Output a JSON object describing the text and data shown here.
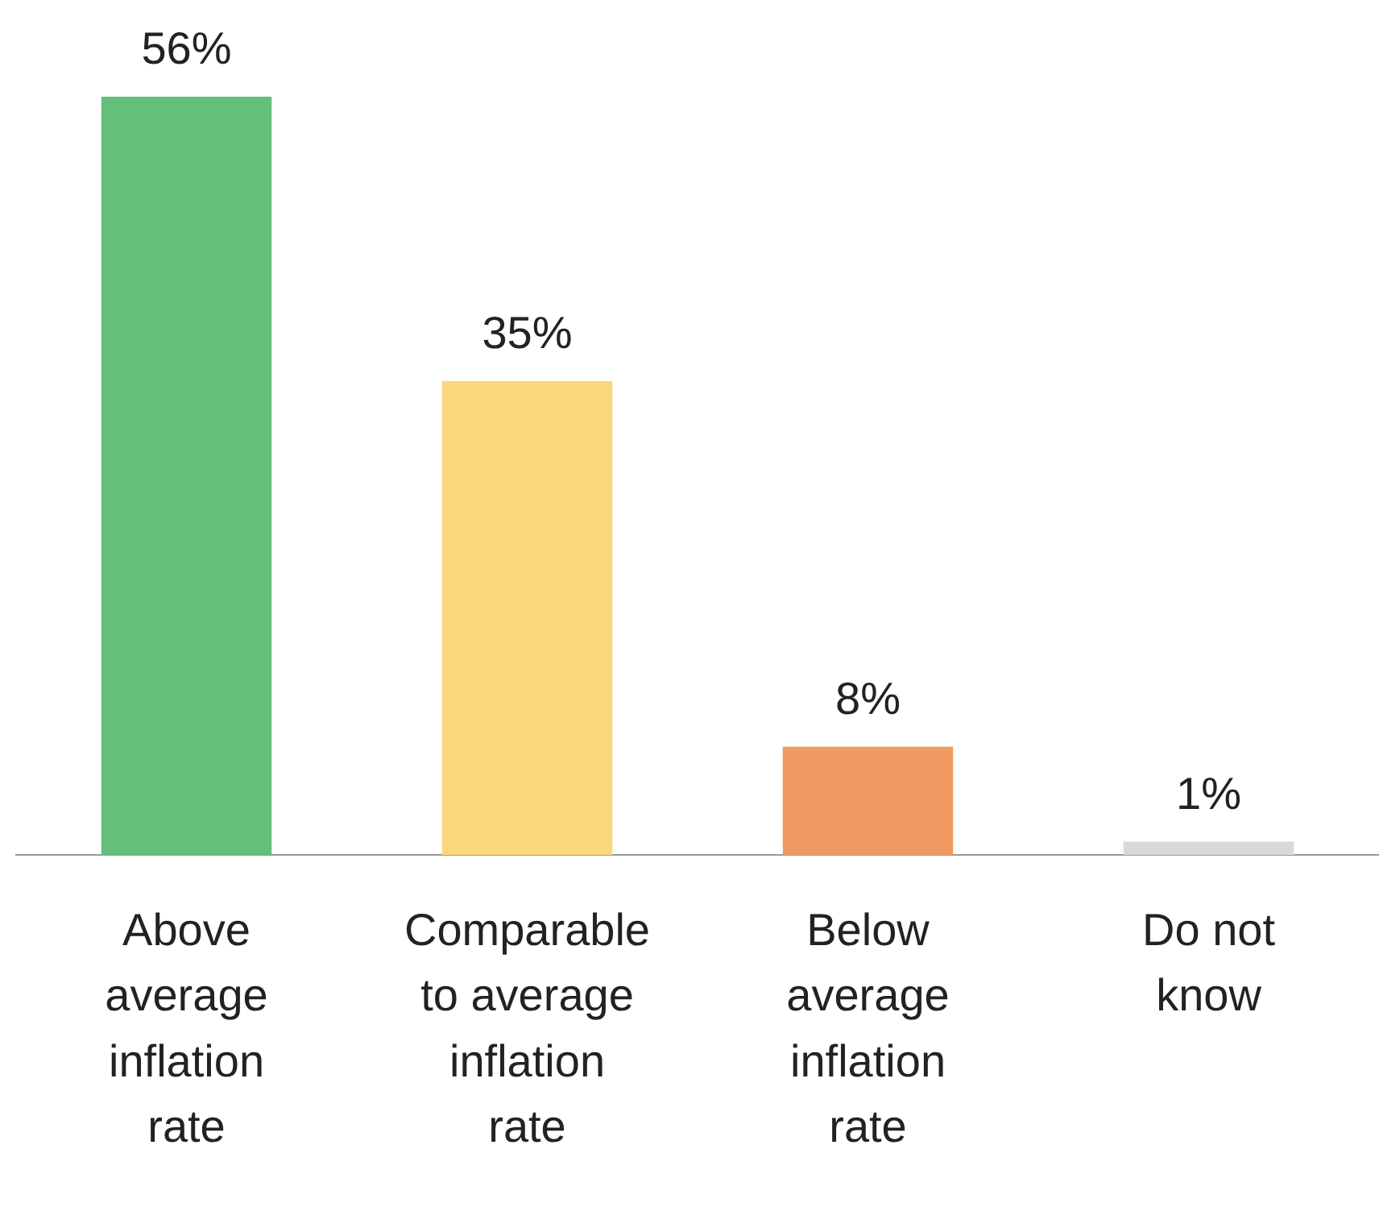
{
  "chart_data": {
    "type": "bar",
    "categories": [
      "Above average inflation rate",
      "Comparable to average inflation rate",
      "Below average inflation rate",
      "Do not know"
    ],
    "values": [
      56,
      35,
      8,
      1
    ],
    "colors": [
      "#63bf7a",
      "#fad77b",
      "#f09a62",
      "#d9d9d9"
    ],
    "value_labels": [
      "56%",
      "35%",
      "8%",
      "1%"
    ],
    "grid": false,
    "legend": false
  }
}
